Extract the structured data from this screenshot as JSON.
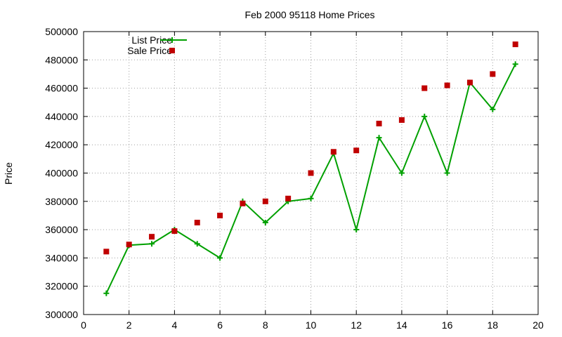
{
  "chart_data": {
    "type": "line",
    "title": "Feb 2000 95118 Home Prices",
    "xlabel": "",
    "ylabel": "Price",
    "xlim": [
      0,
      20
    ],
    "ylim": [
      300000,
      500000
    ],
    "x_ticks": [
      0,
      2,
      4,
      6,
      8,
      10,
      12,
      14,
      16,
      18,
      20
    ],
    "y_ticks": [
      300000,
      320000,
      340000,
      360000,
      380000,
      400000,
      420000,
      440000,
      460000,
      480000,
      500000
    ],
    "grid": true,
    "legend_position": "top-left",
    "x": [
      1,
      2,
      3,
      4,
      5,
      6,
      7,
      8,
      9,
      10,
      11,
      12,
      13,
      14,
      15,
      16,
      17,
      18,
      19
    ],
    "series": [
      {
        "name": "List Price",
        "style": "line-with-plus-markers",
        "color": "#00a000",
        "values": [
          315000,
          349000,
          350000,
          360000,
          350000,
          340000,
          380000,
          365000,
          380000,
          382000,
          414000,
          360000,
          425000,
          400000,
          440000,
          400000,
          464000,
          445000,
          477000
        ]
      },
      {
        "name": "Sale Price",
        "style": "square-markers",
        "color": "#c00000",
        "values": [
          344500,
          349500,
          355000,
          359000,
          365000,
          370000,
          378500,
          380000,
          382000,
          400000,
          415000,
          416000,
          435000,
          437500,
          460000,
          462000,
          464000,
          470000,
          491000
        ]
      }
    ]
  }
}
